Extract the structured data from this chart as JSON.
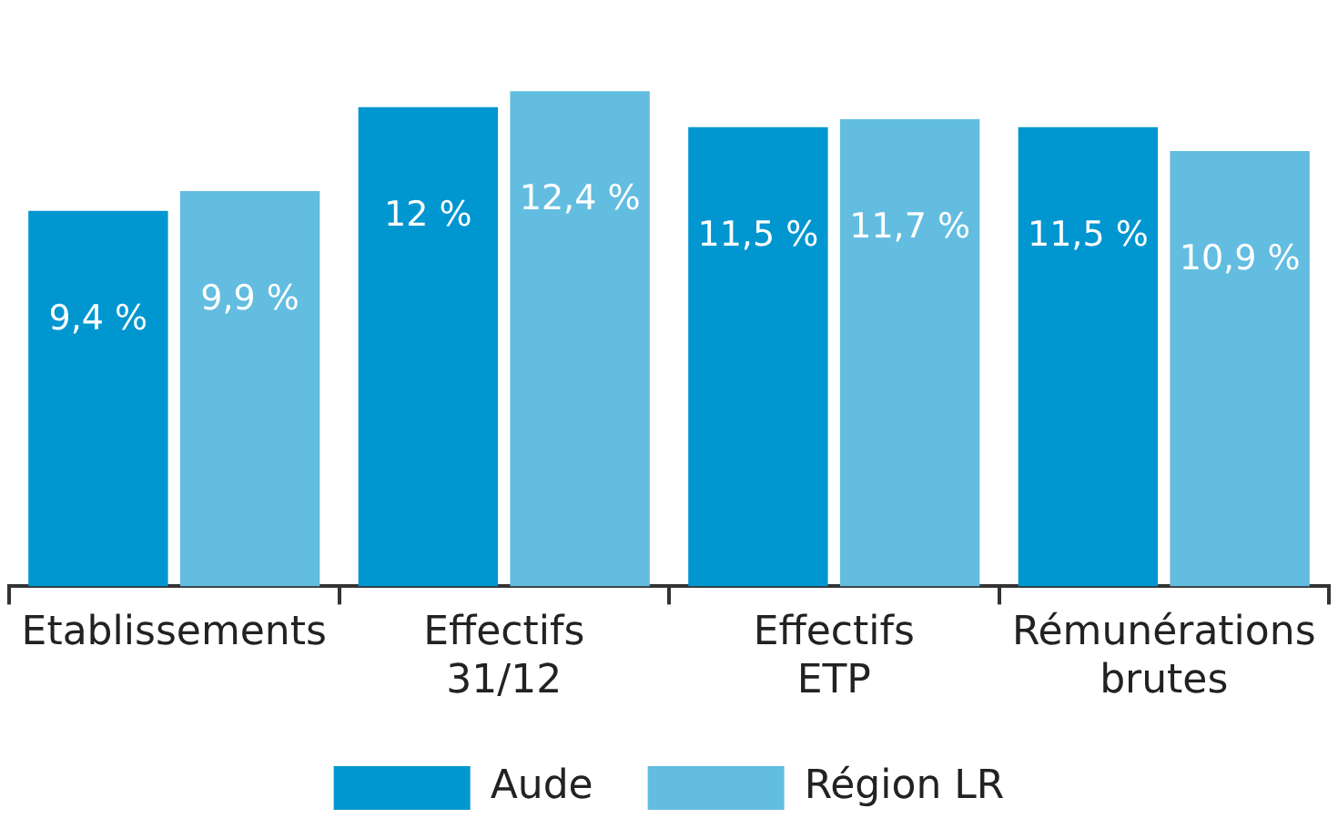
{
  "chart_data": {
    "type": "bar",
    "categories": [
      "Etablissements",
      "Effectifs\n31/12",
      "Effectifs\nETP",
      "Rémunérations\nbrutes"
    ],
    "series": [
      {
        "name": "Aude",
        "color": "#0096d0",
        "values": [
          9.4,
          12,
          11.5,
          11.5
        ],
        "value_labels": [
          "9,4 %",
          "12 %",
          "11,5 %",
          "11,5 %"
        ]
      },
      {
        "name": "Région LR",
        "color": "#62bde0",
        "values": [
          9.9,
          12.4,
          11.7,
          10.9
        ],
        "value_labels": [
          "9,9 %",
          "12,4 %",
          "11,7 %",
          "10,9 %"
        ]
      }
    ],
    "legend": "bottom",
    "grid": false,
    "tick_labels": "x"
  }
}
